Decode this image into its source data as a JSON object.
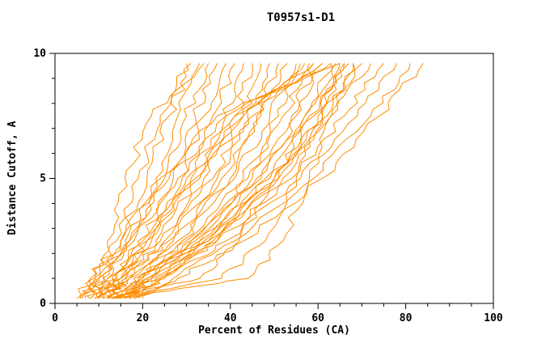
{
  "chart_data": {
    "type": "line",
    "title": "T0957s1-D1",
    "xlabel": "Percent of Residues (CA)",
    "ylabel": "Distance Cutoff, A",
    "xlim": [
      0,
      100
    ],
    "ylim": [
      0,
      10
    ],
    "x_major_ticks": [
      0,
      20,
      40,
      60,
      80,
      100
    ],
    "x_minor_step": 5,
    "y_major_ticks": [
      0,
      5,
      10
    ],
    "y_minor_step": 1,
    "grid": "off",
    "legend": "none",
    "curve_color": "#ff8c00",
    "axis_color": "#000000",
    "background_color": "#ffffff",
    "y_levels": [
      0.2,
      1.0,
      2.5,
      5.0,
      7.5,
      9.6
    ],
    "series_note": "Each series lists Percent-of-Residues (CA) values at the distance cutoffs given in y_levels; one orange curve per model",
    "series": [
      [
        5,
        8,
        14,
        19,
        24,
        30
      ],
      [
        6,
        9,
        15,
        21,
        26,
        31
      ],
      [
        7,
        10,
        17,
        23,
        28,
        33
      ],
      [
        8,
        11,
        18,
        25,
        30,
        35
      ],
      [
        9,
        12,
        20,
        27,
        32,
        37
      ],
      [
        10,
        13,
        21,
        29,
        34,
        39
      ],
      [
        10,
        14,
        22,
        31,
        36,
        41
      ],
      [
        11,
        15,
        23,
        33,
        39,
        43
      ],
      [
        11,
        15,
        24,
        34,
        41,
        45
      ],
      [
        12,
        16,
        25,
        36,
        43,
        47
      ],
      [
        12,
        16,
        26,
        37,
        44,
        49
      ],
      [
        13,
        17,
        27,
        38,
        46,
        51
      ],
      [
        13,
        17,
        28,
        40,
        47,
        53
      ],
      [
        14,
        18,
        29,
        41,
        49,
        55
      ],
      [
        14,
        19,
        30,
        43,
        51,
        56
      ],
      [
        15,
        20,
        31,
        44,
        52,
        58
      ],
      [
        15,
        20,
        32,
        45,
        54,
        59
      ],
      [
        16,
        21,
        33,
        47,
        55,
        61
      ],
      [
        16,
        21,
        34,
        48,
        57,
        63
      ],
      [
        17,
        22,
        35,
        50,
        59,
        65
      ],
      [
        17,
        23,
        36,
        51,
        60,
        66
      ],
      [
        18,
        24,
        37,
        52,
        62,
        68
      ],
      [
        12,
        15,
        21,
        32,
        45,
        57
      ],
      [
        11,
        14,
        19,
        30,
        43,
        59
      ],
      [
        10,
        12,
        17,
        28,
        41,
        61
      ],
      [
        9,
        11,
        16,
        26,
        39,
        63
      ],
      [
        8,
        10,
        15,
        24,
        37,
        65
      ],
      [
        14,
        19,
        31,
        46,
        58,
        67
      ],
      [
        15,
        21,
        33,
        49,
        61,
        70
      ],
      [
        16,
        22,
        35,
        51,
        63,
        72
      ],
      [
        17,
        24,
        37,
        54,
        66,
        75
      ],
      [
        18,
        25,
        39,
        56,
        69,
        78
      ],
      [
        19,
        27,
        41,
        59,
        72,
        81
      ],
      [
        20,
        28,
        43,
        61,
        74,
        84
      ],
      [
        13,
        38,
        48,
        55,
        61,
        66
      ],
      [
        14,
        44,
        52,
        58,
        63,
        68
      ],
      [
        12,
        33,
        42,
        50,
        57,
        64
      ],
      [
        6,
        9,
        12,
        16,
        22,
        34
      ]
    ]
  }
}
